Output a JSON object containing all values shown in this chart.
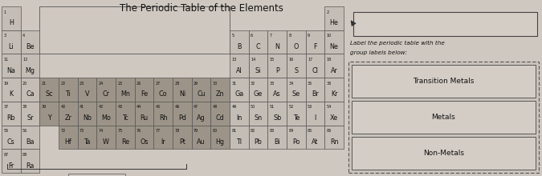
{
  "title": "The Periodic Table of the Elements",
  "bg_color": "#cfc8c0",
  "cell_color_light": "#c4bdb5",
  "cell_color_transition": "#9c9488",
  "cell_border": "#666666",
  "text_color": "#111111",
  "right_text1": "Label the periodic table with the",
  "right_text2": "group labels below:",
  "label1": "Transition Metals",
  "label2": "Metals",
  "label3": "Non-Metals",
  "elements": [
    {
      "num": "1",
      "sym": "H",
      "col": 0,
      "row": 0,
      "type": "light"
    },
    {
      "num": "2",
      "sym": "He",
      "col": 17,
      "row": 0,
      "type": "light"
    },
    {
      "num": "3",
      "sym": "Li",
      "col": 0,
      "row": 1,
      "type": "light"
    },
    {
      "num": "4",
      "sym": "Be",
      "col": 1,
      "row": 1,
      "type": "light"
    },
    {
      "num": "5",
      "sym": "B",
      "col": 12,
      "row": 1,
      "type": "light"
    },
    {
      "num": "6",
      "sym": "C",
      "col": 13,
      "row": 1,
      "type": "light"
    },
    {
      "num": "7",
      "sym": "N",
      "col": 14,
      "row": 1,
      "type": "light"
    },
    {
      "num": "8",
      "sym": "O",
      "col": 15,
      "row": 1,
      "type": "light"
    },
    {
      "num": "9",
      "sym": "F",
      "col": 16,
      "row": 1,
      "type": "light"
    },
    {
      "num": "10",
      "sym": "Ne",
      "col": 17,
      "row": 1,
      "type": "light"
    },
    {
      "num": "11",
      "sym": "Na",
      "col": 0,
      "row": 2,
      "type": "light"
    },
    {
      "num": "12",
      "sym": "Mg",
      "col": 1,
      "row": 2,
      "type": "light"
    },
    {
      "num": "13",
      "sym": "Al",
      "col": 12,
      "row": 2,
      "type": "light"
    },
    {
      "num": "14",
      "sym": "Si",
      "col": 13,
      "row": 2,
      "type": "light"
    },
    {
      "num": "15",
      "sym": "P",
      "col": 14,
      "row": 2,
      "type": "light"
    },
    {
      "num": "16",
      "sym": "S",
      "col": 15,
      "row": 2,
      "type": "light"
    },
    {
      "num": "17",
      "sym": "Cl",
      "col": 16,
      "row": 2,
      "type": "light"
    },
    {
      "num": "18",
      "sym": "Ar",
      "col": 17,
      "row": 2,
      "type": "light"
    },
    {
      "num": "19",
      "sym": "K",
      "col": 0,
      "row": 3,
      "type": "light"
    },
    {
      "num": "20",
      "sym": "Ca",
      "col": 1,
      "row": 3,
      "type": "light"
    },
    {
      "num": "21",
      "sym": "Sc",
      "col": 2,
      "row": 3,
      "type": "transition"
    },
    {
      "num": "22",
      "sym": "Ti",
      "col": 3,
      "row": 3,
      "type": "transition"
    },
    {
      "num": "23",
      "sym": "V",
      "col": 4,
      "row": 3,
      "type": "transition"
    },
    {
      "num": "24",
      "sym": "Cr",
      "col": 5,
      "row": 3,
      "type": "transition"
    },
    {
      "num": "25",
      "sym": "Mn",
      "col": 6,
      "row": 3,
      "type": "transition"
    },
    {
      "num": "26",
      "sym": "Fe",
      "col": 7,
      "row": 3,
      "type": "transition"
    },
    {
      "num": "27",
      "sym": "Co",
      "col": 8,
      "row": 3,
      "type": "transition"
    },
    {
      "num": "28",
      "sym": "Ni",
      "col": 9,
      "row": 3,
      "type": "transition"
    },
    {
      "num": "29",
      "sym": "Cu",
      "col": 10,
      "row": 3,
      "type": "transition"
    },
    {
      "num": "30",
      "sym": "Zn",
      "col": 11,
      "row": 3,
      "type": "transition"
    },
    {
      "num": "31",
      "sym": "Ga",
      "col": 12,
      "row": 3,
      "type": "light"
    },
    {
      "num": "32",
      "sym": "Ge",
      "col": 13,
      "row": 3,
      "type": "light"
    },
    {
      "num": "33",
      "sym": "As",
      "col": 14,
      "row": 3,
      "type": "light"
    },
    {
      "num": "34",
      "sym": "Se",
      "col": 15,
      "row": 3,
      "type": "light"
    },
    {
      "num": "35",
      "sym": "Br",
      "col": 16,
      "row": 3,
      "type": "light"
    },
    {
      "num": "36",
      "sym": "Kr",
      "col": 17,
      "row": 3,
      "type": "light"
    },
    {
      "num": "37",
      "sym": "Rb",
      "col": 0,
      "row": 4,
      "type": "light"
    },
    {
      "num": "38",
      "sym": "Sr",
      "col": 1,
      "row": 4,
      "type": "light"
    },
    {
      "num": "39",
      "sym": "Y",
      "col": 2,
      "row": 4,
      "type": "transition"
    },
    {
      "num": "40",
      "sym": "Zr",
      "col": 3,
      "row": 4,
      "type": "transition"
    },
    {
      "num": "41",
      "sym": "Nb",
      "col": 4,
      "row": 4,
      "type": "transition"
    },
    {
      "num": "42",
      "sym": "Mo",
      "col": 5,
      "row": 4,
      "type": "transition"
    },
    {
      "num": "43",
      "sym": "Tc",
      "col": 6,
      "row": 4,
      "type": "transition"
    },
    {
      "num": "44",
      "sym": "Ru",
      "col": 7,
      "row": 4,
      "type": "transition"
    },
    {
      "num": "45",
      "sym": "Rh",
      "col": 8,
      "row": 4,
      "type": "transition"
    },
    {
      "num": "46",
      "sym": "Pd",
      "col": 9,
      "row": 4,
      "type": "transition"
    },
    {
      "num": "47",
      "sym": "Ag",
      "col": 10,
      "row": 4,
      "type": "transition"
    },
    {
      "num": "48",
      "sym": "Cd",
      "col": 11,
      "row": 4,
      "type": "transition"
    },
    {
      "num": "49",
      "sym": "In",
      "col": 12,
      "row": 4,
      "type": "light"
    },
    {
      "num": "50",
      "sym": "Sn",
      "col": 13,
      "row": 4,
      "type": "light"
    },
    {
      "num": "51",
      "sym": "Sb",
      "col": 14,
      "row": 4,
      "type": "light"
    },
    {
      "num": "52",
      "sym": "Te",
      "col": 15,
      "row": 4,
      "type": "light"
    },
    {
      "num": "53",
      "sym": "I",
      "col": 16,
      "row": 4,
      "type": "light"
    },
    {
      "num": "54",
      "sym": "Xe",
      "col": 17,
      "row": 4,
      "type": "light"
    },
    {
      "num": "55",
      "sym": "Cs",
      "col": 0,
      "row": 5,
      "type": "light"
    },
    {
      "num": "56",
      "sym": "Ba",
      "col": 1,
      "row": 5,
      "type": "light"
    },
    {
      "num": "72",
      "sym": "Hf",
      "col": 3,
      "row": 5,
      "type": "transition"
    },
    {
      "num": "73",
      "sym": "Ta",
      "col": 4,
      "row": 5,
      "type": "transition"
    },
    {
      "num": "74",
      "sym": "W",
      "col": 5,
      "row": 5,
      "type": "transition"
    },
    {
      "num": "75",
      "sym": "Re",
      "col": 6,
      "row": 5,
      "type": "transition"
    },
    {
      "num": "76",
      "sym": "Os",
      "col": 7,
      "row": 5,
      "type": "transition"
    },
    {
      "num": "77",
      "sym": "Ir",
      "col": 8,
      "row": 5,
      "type": "transition"
    },
    {
      "num": "78",
      "sym": "Pt",
      "col": 9,
      "row": 5,
      "type": "transition"
    },
    {
      "num": "79",
      "sym": "Au",
      "col": 10,
      "row": 5,
      "type": "transition"
    },
    {
      "num": "80",
      "sym": "Hg",
      "col": 11,
      "row": 5,
      "type": "transition"
    },
    {
      "num": "81",
      "sym": "Tl",
      "col": 12,
      "row": 5,
      "type": "light"
    },
    {
      "num": "82",
      "sym": "Pb",
      "col": 13,
      "row": 5,
      "type": "light"
    },
    {
      "num": "83",
      "sym": "Bi",
      "col": 14,
      "row": 5,
      "type": "light"
    },
    {
      "num": "84",
      "sym": "Po",
      "col": 15,
      "row": 5,
      "type": "light"
    },
    {
      "num": "85",
      "sym": "At",
      "col": 16,
      "row": 5,
      "type": "light"
    },
    {
      "num": "86",
      "sym": "Rn",
      "col": 17,
      "row": 5,
      "type": "light"
    },
    {
      "num": "87",
      "sym": "Fr",
      "col": 0,
      "row": 6,
      "type": "light"
    },
    {
      "num": "88",
      "sym": "Ra",
      "col": 1,
      "row": 6,
      "type": "light"
    }
  ]
}
